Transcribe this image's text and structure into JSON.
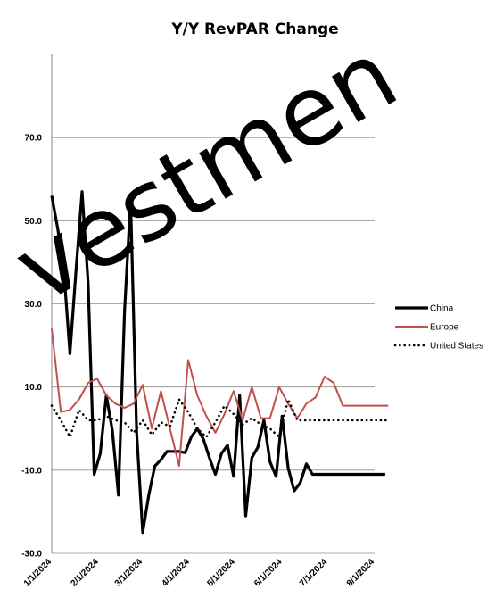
{
  "chart_data": {
    "type": "line",
    "title": "Y/Y RevPAR Change",
    "xlabel": "",
    "ylabel": "",
    "ylim": [
      -30,
      90
    ],
    "yticks": [
      -30,
      -10,
      10,
      30,
      50,
      70
    ],
    "ytick_labels": [
      "-30.0",
      "-10.0",
      "10.0",
      "30.0",
      "50.0",
      "70.0"
    ],
    "x_start": "1/1/2024",
    "x_end": "8/1/2024",
    "xtick_labels": [
      "1/1/2024",
      "2/1/2024",
      "3/1/2024",
      "4/1/2024",
      "5/1/2024",
      "6/1/2024",
      "7/1/2024",
      "8/1/2024"
    ],
    "grid": true,
    "legend_position": "right",
    "watermark": "vestmen",
    "series": [
      {
        "name": "China",
        "color": "#000000",
        "style": "solid-thick",
        "dates": [
          "1/1/2024",
          "1/5/2024",
          "1/9/2024",
          "1/13/2024",
          "1/17/2024",
          "1/21/2024",
          "1/25/2024",
          "1/29/2024",
          "2/2/2024",
          "2/6/2024",
          "2/10/2024",
          "2/14/2024",
          "2/18/2024",
          "2/22/2024",
          "2/26/2024",
          "3/1/2024",
          "3/5/2024",
          "3/9/2024",
          "3/13/2024",
          "3/17/2024",
          "3/21/2024",
          "3/25/2024",
          "3/29/2024",
          "4/2/2024",
          "4/6/2024",
          "4/10/2024",
          "4/14/2024",
          "4/18/2024",
          "4/22/2024",
          "4/26/2024",
          "4/30/2024",
          "5/4/2024",
          "5/8/2024",
          "5/12/2024",
          "5/16/2024",
          "5/20/2024",
          "5/24/2024",
          "5/28/2024",
          "6/1/2024",
          "6/5/2024",
          "6/9/2024",
          "6/13/2024",
          "6/17/2024",
          "6/21/2024",
          "6/25/2024",
          "6/29/2024",
          "7/3/2024",
          "7/7/2024",
          "7/11/2024",
          "7/15/2024",
          "7/19/2024",
          "7/23/2024",
          "7/27/2024",
          "7/31/2024",
          "8/4/2024",
          "8/8/2024"
        ],
        "values": [
          56.0,
          48.0,
          38.0,
          18.0,
          38.0,
          57.0,
          35.0,
          -11.0,
          -6.0,
          8.0,
          -0.5,
          -16.0,
          28.0,
          55.0,
          -1.0,
          -25.0,
          -16.0,
          -9.0,
          -7.5,
          -5.5,
          -5.5,
          -5.5,
          -5.8,
          -2.0,
          0.0,
          -2.5,
          -7.0,
          -11.0,
          -6.0,
          -4.0,
          -11.5,
          8.0,
          -21.0,
          -7.0,
          -4.5,
          2.0,
          -8.0,
          -11.5,
          3.0,
          -9.5,
          -15.0,
          -13.0,
          -8.5,
          -11.0,
          -11.0,
          -11.0,
          -11.0,
          -11.0,
          -11.0,
          -11.0,
          -11.0,
          -11.0,
          -11.0,
          -11.0,
          -11.0,
          -11.0
        ]
      },
      {
        "name": "Europe",
        "color": "#c0504d",
        "style": "solid",
        "dates": [
          "1/1/2024",
          "1/7/2024",
          "1/13/2024",
          "1/19/2024",
          "1/25/2024",
          "1/31/2024",
          "2/6/2024",
          "2/12/2024",
          "2/18/2024",
          "2/24/2024",
          "3/1/2024",
          "3/7/2024",
          "3/13/2024",
          "3/19/2024",
          "3/25/2024",
          "3/31/2024",
          "4/6/2024",
          "4/12/2024",
          "4/18/2024",
          "4/24/2024",
          "4/30/2024",
          "5/6/2024",
          "5/12/2024",
          "5/18/2024",
          "5/24/2024",
          "5/30/2024",
          "6/5/2024",
          "6/11/2024",
          "6/17/2024",
          "6/23/2024",
          "6/29/2024",
          "7/5/2024",
          "7/11/2024",
          "7/17/2024",
          "7/23/2024",
          "7/29/2024",
          "8/4/2024",
          "8/10/2024"
        ],
        "values": [
          24.0,
          4.0,
          4.5,
          7.0,
          11.0,
          12.0,
          8.0,
          6.0,
          5.0,
          6.0,
          10.5,
          0.0,
          9.0,
          0.0,
          -9.0,
          16.5,
          8.0,
          3.0,
          -1.0,
          3.5,
          9.0,
          2.0,
          10.0,
          2.5,
          2.5,
          10.0,
          6.0,
          2.5,
          6.0,
          7.5,
          12.5,
          11.0,
          5.5,
          5.5,
          5.5,
          5.5,
          5.5,
          5.5
        ]
      },
      {
        "name": "United States",
        "color": "#000000",
        "style": "dotted",
        "dates": [
          "1/1/2024",
          "1/7/2024",
          "1/13/2024",
          "1/19/2024",
          "1/25/2024",
          "1/31/2024",
          "2/6/2024",
          "2/12/2024",
          "2/18/2024",
          "2/24/2024",
          "3/1/2024",
          "3/7/2024",
          "3/13/2024",
          "3/19/2024",
          "3/25/2024",
          "3/31/2024",
          "4/6/2024",
          "4/12/2024",
          "4/18/2024",
          "4/24/2024",
          "4/30/2024",
          "5/6/2024",
          "5/12/2024",
          "5/18/2024",
          "5/24/2024",
          "5/30/2024",
          "6/5/2024",
          "6/11/2024",
          "6/17/2024",
          "6/23/2024",
          "6/29/2024",
          "7/5/2024",
          "7/11/2024",
          "7/17/2024",
          "7/23/2024",
          "7/29/2024",
          "8/4/2024",
          "8/10/2024"
        ],
        "values": [
          5.5,
          2.0,
          -2.0,
          4.5,
          2.0,
          2.0,
          3.0,
          2.0,
          1.5,
          -1.0,
          2.0,
          -1.5,
          1.5,
          0.5,
          7.0,
          4.0,
          0.0,
          -2.0,
          1.5,
          5.5,
          3.5,
          1.0,
          2.5,
          1.0,
          0.0,
          -2.0,
          7.0,
          2.0,
          2.0,
          2.0,
          2.0,
          2.0,
          2.0,
          2.0,
          2.0,
          2.0,
          2.0,
          2.0
        ]
      }
    ]
  }
}
